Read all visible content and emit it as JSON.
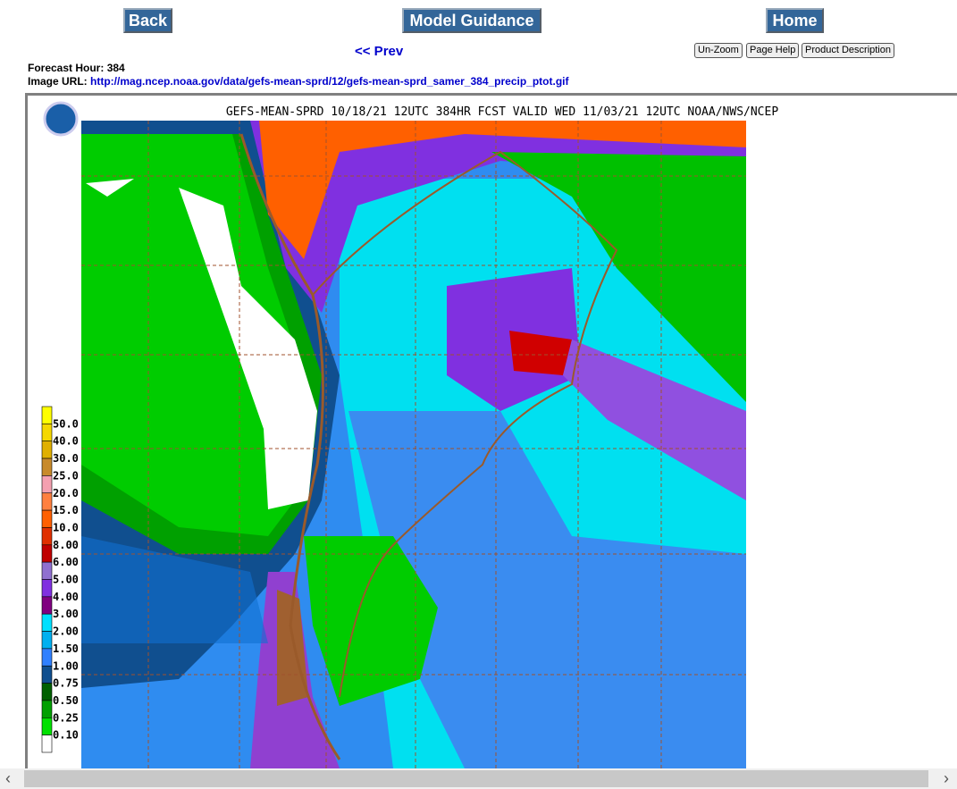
{
  "nav": {
    "back": "Back",
    "model_guidance": "Model Guidance",
    "home": "Home"
  },
  "prev": "<< Prev",
  "buttons": [
    "Un-Zoom",
    "Page Help",
    "Product Description"
  ],
  "forecast_hour": {
    "label": "Forecast Hour:",
    "value": "384"
  },
  "image_url": {
    "label": "Image URL:",
    "url": "http://mag.ncep.noaa.gov/data/gefs-mean-sprd/12/gefs-mean-sprd_samer_384_precip_ptot.gif"
  },
  "map": {
    "title": "GEFS-MEAN-SPRD 10/18/21 12UTC 384HR FCST VALID WED 11/03/21 12UTC NOAA/NWS/NCEP",
    "legend": [
      "50.0",
      "40.0",
      "30.0",
      "25.0",
      "20.0",
      "15.0",
      "10.0",
      "8.00",
      "6.00",
      "5.00",
      "4.00",
      "3.00",
      "2.00",
      "1.50",
      "1.00",
      "0.75",
      "0.50",
      "0.25",
      "0.10"
    ]
  }
}
